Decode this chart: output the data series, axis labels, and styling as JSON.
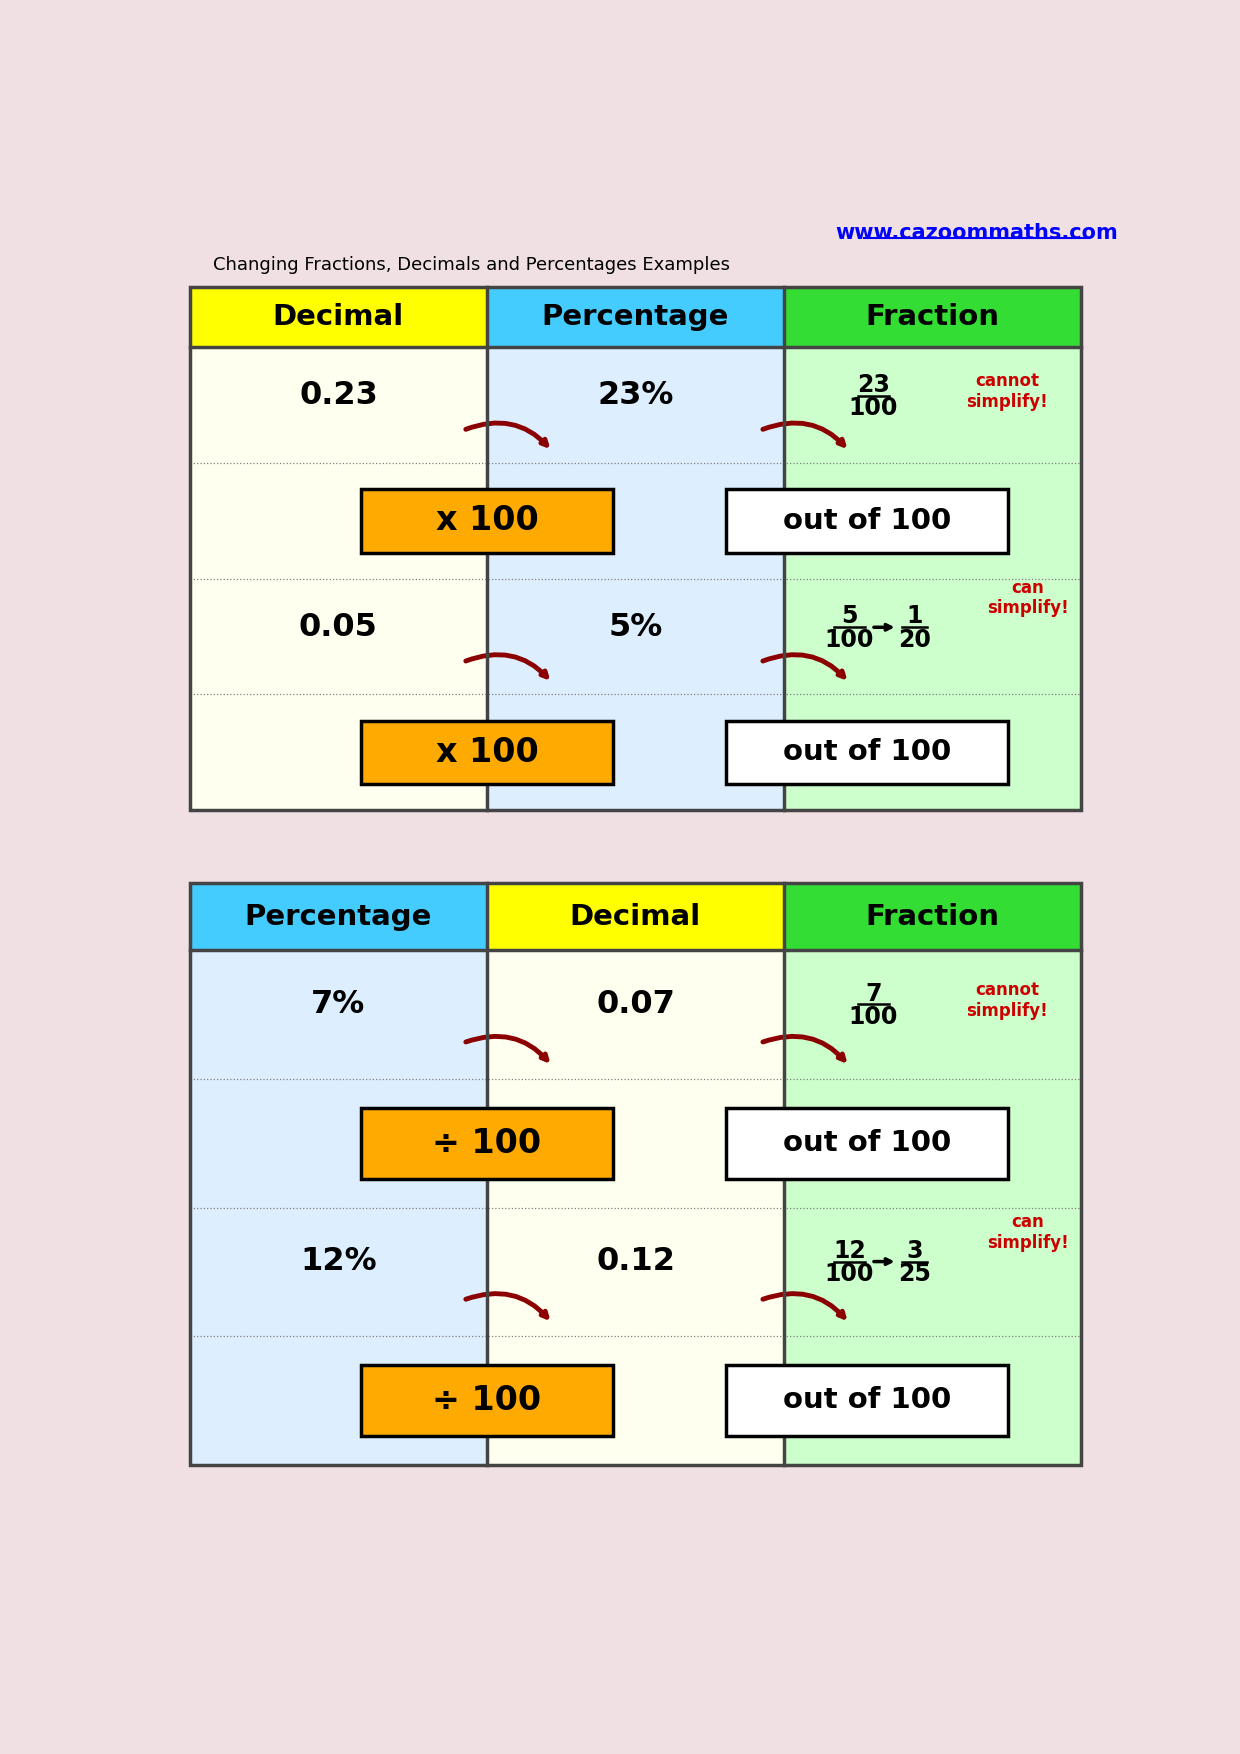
{
  "bg_color": "#f0e0e4",
  "title": "Changing Fractions, Decimals and Percentages Examples",
  "website": "www.cazoommaths.com",
  "table1": {
    "headers": [
      "Decimal",
      "Percentage",
      "Fraction"
    ],
    "header_colors": [
      "#ffff00",
      "#44ccff",
      "#33dd33"
    ],
    "col_bg_colors": [
      "#fffff0",
      "#ddeeff",
      "#ccffcc"
    ],
    "row1_val0": "0.23",
    "row1_val1": "23%",
    "row1_frac_num": "23",
    "row1_frac_den": "100",
    "row1_note": "cannot\nsimplify!",
    "row2_val0": "0.05",
    "row2_val1": "5%",
    "row2_frac_num": "5",
    "row2_frac_den": "100",
    "row2_simp_num": "1",
    "row2_simp_den": "20",
    "row2_note": "can\nsimplify!",
    "box1_text": "x 100",
    "box2_text": "out of 100"
  },
  "table2": {
    "headers": [
      "Percentage",
      "Decimal",
      "Fraction"
    ],
    "header_colors": [
      "#44ccff",
      "#ffff00",
      "#33dd33"
    ],
    "col_bg_colors": [
      "#ddeeff",
      "#fffff0",
      "#ccffcc"
    ],
    "row1_val0": "7%",
    "row1_val1": "0.07",
    "row1_frac_num": "7",
    "row1_frac_den": "100",
    "row1_note": "cannot\nsimplify!",
    "row2_val0": "12%",
    "row2_val1": "0.12",
    "row2_frac_num": "12",
    "row2_frac_den": "100",
    "row2_simp_num": "3",
    "row2_simp_den": "25",
    "row2_note": "can\nsimplify!",
    "box1_text": "÷ 100",
    "box2_text": "out of 100"
  },
  "arrow_color": "#8b0000",
  "box_orange_color": "#ffaa00",
  "box_white_color": "#ffffff",
  "red_text_color": "#cc0000",
  "border_color": "#444444"
}
